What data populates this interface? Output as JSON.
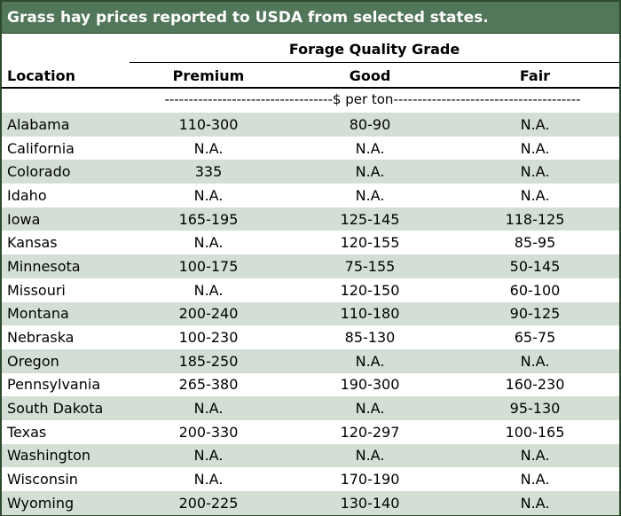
{
  "title": "Grass hay prices reported to USDA from selected states.",
  "header": {
    "group": "Forage Quality Grade",
    "location": "Location",
    "premium": "Premium",
    "good": "Good",
    "fair": "Fair",
    "unit": "-----------------------------------$ per ton---------------------------------------"
  },
  "rows": [
    {
      "location": "Alabama",
      "premium": "110-300",
      "good": "80-90",
      "fair": "N.A."
    },
    {
      "location": "California",
      "premium": "N.A.",
      "good": "N.A.",
      "fair": "N.A."
    },
    {
      "location": "Colorado",
      "premium": "335",
      "good": "N.A.",
      "fair": "N.A."
    },
    {
      "location": "Idaho",
      "premium": "N.A.",
      "good": "N.A.",
      "fair": "N.A."
    },
    {
      "location": "Iowa",
      "premium": "165-195",
      "good": "125-145",
      "fair": "118-125"
    },
    {
      "location": "Kansas",
      "premium": "N.A.",
      "good": "120-155",
      "fair": "85-95"
    },
    {
      "location": "Minnesota",
      "premium": "100-175",
      "good": "75-155",
      "fair": "50-145"
    },
    {
      "location": "Missouri",
      "premium": "N.A.",
      "good": "120-150",
      "fair": "60-100"
    },
    {
      "location": "Montana",
      "premium": "200-240",
      "good": "110-180",
      "fair": "90-125"
    },
    {
      "location": "Nebraska",
      "premium": "100-230",
      "good": "85-130",
      "fair": "65-75"
    },
    {
      "location": "Oregon",
      "premium": "185-250",
      "good": "N.A.",
      "fair": "N.A."
    },
    {
      "location": "Pennsylvania",
      "premium": "265-380",
      "good": "190-300",
      "fair": "160-230"
    },
    {
      "location": "South Dakota",
      "premium": "N.A.",
      "good": "N.A.",
      "fair": "95-130"
    },
    {
      "location": "Texas",
      "premium": "200-330",
      "good": "120-297",
      "fair": "100-165"
    },
    {
      "location": "Washington",
      "premium": "N.A.",
      "good": "N.A.",
      "fair": "N.A."
    },
    {
      "location": "Wisconsin",
      "premium": "N.A.",
      "good": "170-190",
      "fair": "N.A."
    },
    {
      "location": "Wyoming",
      "premium": "200-225",
      "good": "130-140",
      "fair": "N.A."
    }
  ],
  "colors": {
    "title_bg": "#52765a",
    "shade": "#d3dfd5",
    "border": "#2e4a2e"
  }
}
